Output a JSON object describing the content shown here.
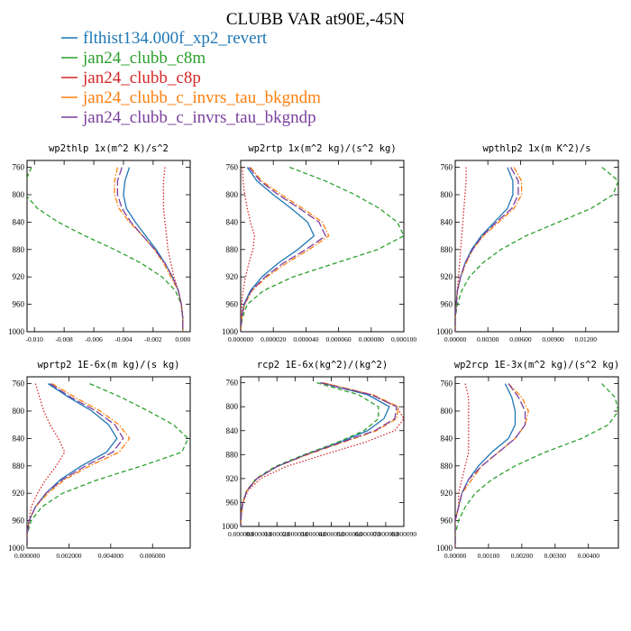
{
  "figure": {
    "title": "CLUBB VAR at90E,-45N"
  },
  "legend": [
    {
      "label": "flthist134.000f_xp2_revert",
      "color": "#1f77b4",
      "dash": "solid"
    },
    {
      "label": "jan24_clubb_c8m",
      "color": "#2ca02c",
      "dash": "dashed"
    },
    {
      "label": "jan24_clubb_c8p",
      "color": "#d62728",
      "dash": "dotted"
    },
    {
      "label": "jan24_clubb_c_invrs_tau_bkgndm",
      "color": "#ff7f0e",
      "dash": "dashdot"
    },
    {
      "label": "jan24_clubb_c_invrs_tau_bkgndp",
      "color": "#7b3f9e",
      "dash": "longdash"
    }
  ],
  "chart_data": [
    {
      "type": "line",
      "title": "wp2thlp  1x(m^2 K)/s^2",
      "ylim": [
        1000,
        750
      ],
      "yticks": [
        760,
        800,
        840,
        880,
        920,
        960,
        1000
      ],
      "xlim": [
        -0.0105,
        0.0005
      ],
      "xticks": [
        -0.01,
        -0.008,
        -0.006,
        -0.004,
        -0.002,
        0.0
      ],
      "xtick_labels": [
        "-0.010",
        "-0.008",
        "-0.006",
        "-0.004",
        "-0.002",
        "0.000"
      ],
      "pressure": [
        760,
        780,
        800,
        820,
        840,
        860,
        880,
        900,
        920,
        940,
        960,
        980,
        1000
      ],
      "series": [
        {
          "name": "flthist134.000f_xp2_revert",
          "values": [
            -0.0036,
            -0.0039,
            -0.004,
            -0.0038,
            -0.0032,
            -0.0025,
            -0.0018,
            -0.0012,
            -0.0007,
            -0.0003,
            -0.0001,
            0.0,
            0.0
          ]
        },
        {
          "name": "jan24_clubb_c8m",
          "values": [
            -0.0102,
            -0.0106,
            -0.0106,
            -0.0098,
            -0.0084,
            -0.0066,
            -0.0046,
            -0.0028,
            -0.0014,
            -0.0005,
            -0.0001,
            0.0,
            0.0
          ]
        },
        {
          "name": "jan24_clubb_c8p",
          "values": [
            -0.0012,
            -0.0013,
            -0.0013,
            -0.0013,
            -0.0012,
            -0.0011,
            -0.001,
            -0.0008,
            -0.0006,
            -0.0003,
            -0.0001,
            0.0,
            0.0
          ]
        },
        {
          "name": "jan24_clubb_c_invrs_tau_bkgndm",
          "values": [
            -0.0044,
            -0.0046,
            -0.0046,
            -0.0043,
            -0.0036,
            -0.0027,
            -0.0019,
            -0.0013,
            -0.0008,
            -0.0003,
            -0.0001,
            0.0,
            0.0
          ]
        },
        {
          "name": "jan24_clubb_c_invrs_tau_bkgndp",
          "values": [
            -0.0041,
            -0.0044,
            -0.0044,
            -0.0041,
            -0.0035,
            -0.0027,
            -0.0019,
            -0.0012,
            -0.0007,
            -0.0003,
            -0.0001,
            0.0,
            0.0
          ]
        }
      ]
    },
    {
      "type": "line",
      "title": "wp2rtp  1x(m^2 kg)/(s^2 kg)",
      "ylim": [
        1000,
        750
      ],
      "yticks": [
        760,
        800,
        840,
        880,
        920,
        960,
        1000
      ],
      "xlim": [
        0,
        0.0001
      ],
      "xticks": [
        0,
        2e-05,
        4e-05,
        6e-05,
        8e-05,
        0.0001
      ],
      "xtick_labels": [
        "0.000000",
        "0.000020",
        "0.000040",
        "0.000060",
        "0.000080",
        "0.000100"
      ],
      "pressure": [
        760,
        780,
        800,
        820,
        840,
        860,
        880,
        900,
        920,
        940,
        960,
        980,
        1000
      ],
      "series": [
        {
          "name": "flthist134.000f_xp2_revert",
          "values": [
            4e-06,
            1e-05,
            2e-05,
            3.1e-05,
            4.1e-05,
            4.5e-05,
            3.5e-05,
            2.3e-05,
            1.3e-05,
            6e-06,
            2e-06,
            5e-07,
            0.0
          ]
        },
        {
          "name": "jan24_clubb_c8m",
          "values": [
            3e-05,
            5.2e-05,
            7e-05,
            8.5e-05,
            9.6e-05,
            0.0001,
            8.4e-05,
            5.8e-05,
            3.2e-05,
            1.4e-05,
            4e-06,
            1e-06,
            0.0
          ]
        },
        {
          "name": "jan24_clubb_c8p",
          "values": [
            1e-06,
            1.5e-06,
            2.5e-06,
            4e-06,
            6e-06,
            8.5e-06,
            7.5e-06,
            5e-06,
            3e-06,
            1.5e-06,
            6e-07,
            2e-07,
            0.0
          ]
        },
        {
          "name": "jan24_clubb_c_invrs_tau_bkgndm",
          "values": [
            6e-06,
            1.3e-05,
            2.5e-05,
            3.8e-05,
            5e-05,
            5.4e-05,
            4.2e-05,
            2.8e-05,
            1.6e-05,
            7e-06,
            2.5e-06,
            6e-07,
            0.0
          ]
        },
        {
          "name": "jan24_clubb_c_invrs_tau_bkgndp",
          "values": [
            5e-06,
            1.2e-05,
            2.3e-05,
            3.6e-05,
            4.8e-05,
            5.2e-05,
            4e-05,
            2.6e-05,
            1.5e-05,
            6.5e-06,
            2.2e-06,
            5e-07,
            0.0
          ]
        }
      ]
    },
    {
      "type": "line",
      "title": "wpthlp2  1x(m K^2)/s",
      "ylim": [
        1000,
        750
      ],
      "yticks": [
        760,
        800,
        840,
        880,
        920,
        960,
        1000
      ],
      "xlim": [
        0,
        0.015
      ],
      "xticks": [
        0,
        0.003,
        0.006,
        0.009,
        0.012
      ],
      "xtick_labels": [
        "0.00000",
        "0.00300",
        "0.00600",
        "0.00900",
        "0.01200"
      ],
      "pressure": [
        760,
        780,
        800,
        820,
        840,
        860,
        880,
        900,
        920,
        940,
        960,
        980,
        1000
      ],
      "series": [
        {
          "name": "flthist134.000f_xp2_revert",
          "values": [
            0.0048,
            0.0053,
            0.0053,
            0.0048,
            0.0036,
            0.0024,
            0.0015,
            0.0009,
            0.0005,
            0.0002,
            0.0001,
            0.0,
            0.0
          ]
        },
        {
          "name": "jan24_clubb_c8m",
          "values": [
            0.0135,
            0.015,
            0.0145,
            0.0125,
            0.0095,
            0.0065,
            0.0042,
            0.0025,
            0.0013,
            0.0006,
            0.0002,
            0.0,
            0.0
          ]
        },
        {
          "name": "jan24_clubb_c8p",
          "values": [
            0.001,
            0.001,
            0.0009,
            0.0008,
            0.0007,
            0.0006,
            0.0005,
            0.0004,
            0.0003,
            0.0002,
            0.0001,
            0.0,
            0.0
          ]
        },
        {
          "name": "jan24_clubb_c_invrs_tau_bkgndm",
          "values": [
            0.0054,
            0.0061,
            0.0061,
            0.0054,
            0.004,
            0.0026,
            0.0016,
            0.001,
            0.0005,
            0.0002,
            0.0001,
            0.0,
            0.0
          ]
        },
        {
          "name": "jan24_clubb_c_invrs_tau_bkgndp",
          "values": [
            0.0051,
            0.0058,
            0.0058,
            0.0052,
            0.0038,
            0.0025,
            0.0016,
            0.0009,
            0.0005,
            0.0002,
            0.0001,
            0.0,
            0.0
          ]
        }
      ]
    },
    {
      "type": "line",
      "title": "wprtp2  1E-6x(m kg)/(s kg)",
      "ylim": [
        1000,
        750
      ],
      "yticks": [
        760,
        800,
        840,
        880,
        920,
        960,
        1000
      ],
      "xlim": [
        0,
        0.0078
      ],
      "xticks": [
        0,
        0.002,
        0.004,
        0.006
      ],
      "xtick_labels": [
        "0.000000",
        "0.002000",
        "0.004000",
        "0.006000"
      ],
      "pressure": [
        760,
        780,
        800,
        820,
        840,
        860,
        880,
        900,
        920,
        940,
        960,
        980,
        1000
      ],
      "series": [
        {
          "name": "flthist134.000f_xp2_revert",
          "values": [
            0.001,
            0.002,
            0.0031,
            0.0039,
            0.0043,
            0.0038,
            0.0026,
            0.0016,
            0.0009,
            0.0004,
            0.0001,
            0.0,
            0.0
          ]
        },
        {
          "name": "jan24_clubb_c8m",
          "values": [
            0.003,
            0.0045,
            0.0058,
            0.007,
            0.0077,
            0.0074,
            0.0055,
            0.0034,
            0.0017,
            0.0007,
            0.0002,
            0.0,
            0.0
          ]
        },
        {
          "name": "jan24_clubb_c8p",
          "values": [
            0.0004,
            0.0006,
            0.0008,
            0.0011,
            0.0015,
            0.0018,
            0.0014,
            0.0009,
            0.0005,
            0.0002,
            0.0001,
            0.0,
            0.0
          ]
        },
        {
          "name": "jan24_clubb_c_invrs_tau_bkgndm",
          "values": [
            0.0012,
            0.0023,
            0.0035,
            0.0044,
            0.0049,
            0.0044,
            0.003,
            0.0018,
            0.001,
            0.0004,
            0.0001,
            0.0,
            0.0
          ]
        },
        {
          "name": "jan24_clubb_c_invrs_tau_bkgndp",
          "values": [
            0.0011,
            0.0021,
            0.0033,
            0.0042,
            0.0046,
            0.0041,
            0.0028,
            0.0017,
            0.0009,
            0.0004,
            0.0001,
            0.0,
            0.0
          ]
        }
      ]
    },
    {
      "type": "line",
      "title": "rcp2  1E-6x(kg^2)/(kg^2)",
      "ylim": [
        1000,
        750
      ],
      "yticks": [
        760,
        800,
        840,
        880,
        920,
        960,
        1000
      ],
      "xlim": [
        0,
        9e-05
      ],
      "xticks": [
        0,
        1e-05,
        2e-05,
        3e-05,
        4e-05,
        5e-05,
        6e-05,
        7e-05,
        8e-05,
        9e-05
      ],
      "xtick_labels": [
        "0.000000",
        "0.000010",
        "0.000020",
        "0.000030",
        "0.000040",
        "0.000050",
        "0.000060",
        "0.000070",
        "0.000080",
        "0.000090"
      ],
      "pressure": [
        760,
        780,
        800,
        820,
        840,
        860,
        880,
        900,
        920,
        940,
        960,
        980,
        1000
      ],
      "series": [
        {
          "name": "flthist134.000f_xp2_revert",
          "values": [
            4.4e-05,
            7e-05,
            8.2e-05,
            7.9e-05,
            7e-05,
            5.4e-05,
            3.6e-05,
            2e-05,
            9e-06,
            3.5e-06,
            1.2e-06,
            3e-07,
            0.0
          ]
        },
        {
          "name": "jan24_clubb_c8m",
          "values": [
            4.2e-05,
            6.5e-05,
            7.6e-05,
            7.6e-05,
            6.8e-05,
            5.3e-05,
            3.5e-05,
            1.9e-05,
            8.5e-06,
            3.3e-06,
            1.1e-06,
            3e-07,
            0.0
          ]
        },
        {
          "name": "jan24_clubb_c8p",
          "values": [
            4.6e-05,
            7.2e-05,
            8.6e-05,
            9e-05,
            8.5e-05,
            6.8e-05,
            4.6e-05,
            2.5e-05,
            1.1e-05,
            4e-06,
            1.3e-06,
            3e-07,
            0.0
          ]
        },
        {
          "name": "jan24_clubb_c_invrs_tau_bkgndm",
          "values": [
            4.5e-05,
            7.3e-05,
            8.7e-05,
            8.6e-05,
            7.5e-05,
            5.6e-05,
            3.7e-05,
            2e-05,
            9e-06,
            3.5e-06,
            1.2e-06,
            3e-07,
            0.0
          ]
        },
        {
          "name": "jan24_clubb_c_invrs_tau_bkgndp",
          "values": [
            4.4e-05,
            7.2e-05,
            8.6e-05,
            8.5e-05,
            7.4e-05,
            5.5e-05,
            3.6e-05,
            2e-05,
            9e-06,
            3.5e-06,
            1.2e-06,
            3e-07,
            0.0
          ]
        }
      ]
    },
    {
      "type": "line",
      "title": "wp2rcp  1E-3x(m^2 kg)/(s^2 kg)",
      "ylim": [
        1000,
        750
      ],
      "yticks": [
        760,
        800,
        840,
        880,
        920,
        960,
        1000
      ],
      "xlim": [
        0,
        0.0049
      ],
      "xticks": [
        0,
        0.001,
        0.002,
        0.003,
        0.004
      ],
      "xtick_labels": [
        "0.00000",
        "0.00100",
        "0.00200",
        "0.00300",
        "0.00400"
      ],
      "pressure": [
        760,
        780,
        800,
        820,
        840,
        860,
        880,
        900,
        920,
        940,
        960,
        980,
        1000
      ],
      "series": [
        {
          "name": "flthist134.000f_xp2_revert",
          "values": [
            0.0015,
            0.0017,
            0.0018,
            0.0018,
            0.0016,
            0.0011,
            0.0007,
            0.0004,
            0.0002,
            0.0001,
            0.0,
            0.0,
            0.0
          ]
        },
        {
          "name": "jan24_clubb_c8m",
          "values": [
            0.0044,
            0.0048,
            0.0049,
            0.0046,
            0.0038,
            0.0027,
            0.0018,
            0.0011,
            0.0006,
            0.0003,
            0.0001,
            0.0,
            0.0
          ]
        },
        {
          "name": "jan24_clubb_c8p",
          "values": [
            0.0003,
            0.0004,
            0.0004,
            0.0004,
            0.0004,
            0.0004,
            0.0003,
            0.0002,
            0.0001,
            0.0001,
            0.0,
            0.0,
            0.0
          ]
        },
        {
          "name": "jan24_clubb_c_invrs_tau_bkgndm",
          "values": [
            0.0016,
            0.002,
            0.0022,
            0.0021,
            0.0018,
            0.0013,
            0.0008,
            0.0005,
            0.0002,
            0.0001,
            0.0,
            0.0,
            0.0
          ]
        },
        {
          "name": "jan24_clubb_c_invrs_tau_bkgndp",
          "values": [
            0.0016,
            0.0019,
            0.0021,
            0.0021,
            0.0018,
            0.0013,
            0.0008,
            0.0004,
            0.0002,
            0.0001,
            0.0,
            0.0,
            0.0
          ]
        }
      ]
    }
  ]
}
